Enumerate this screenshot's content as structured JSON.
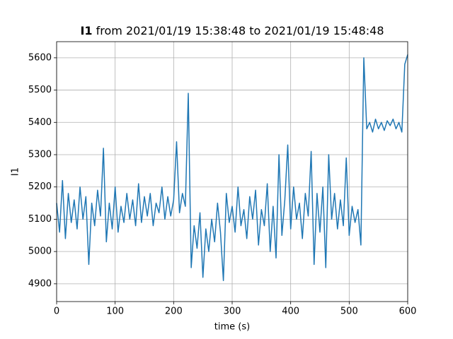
{
  "chart_data": {
    "type": "line",
    "title": {
      "bold": "I1",
      "text": "from 2021/01/19 15:38:48 to 2021/01/19 15:48:48"
    },
    "xlabel": "time (s)",
    "ylabel": "I1",
    "x": [
      0,
      5,
      10,
      15,
      20,
      25,
      30,
      35,
      40,
      45,
      50,
      55,
      60,
      65,
      70,
      75,
      80,
      85,
      90,
      95,
      100,
      105,
      110,
      115,
      120,
      125,
      130,
      135,
      140,
      145,
      150,
      155,
      160,
      165,
      170,
      175,
      180,
      185,
      190,
      195,
      200,
      205,
      210,
      215,
      220,
      225,
      230,
      235,
      240,
      245,
      250,
      255,
      260,
      265,
      270,
      275,
      280,
      285,
      290,
      295,
      300,
      305,
      310,
      315,
      320,
      325,
      330,
      335,
      340,
      345,
      350,
      355,
      360,
      365,
      370,
      375,
      380,
      385,
      390,
      395,
      400,
      405,
      410,
      415,
      420,
      425,
      430,
      435,
      440,
      445,
      450,
      455,
      460,
      465,
      470,
      475,
      480,
      485,
      490,
      495,
      500,
      505,
      510,
      515,
      520,
      525,
      530,
      535,
      540,
      545,
      550,
      555,
      560,
      565,
      570,
      575,
      580,
      585,
      590,
      595,
      600
    ],
    "series": [
      {
        "name": "I1",
        "color": "#1f77b4",
        "values": [
          5150,
          5060,
          5220,
          5040,
          5180,
          5090,
          5160,
          5070,
          5200,
          5100,
          5170,
          4960,
          5150,
          5080,
          5190,
          5110,
          5320,
          5030,
          5150,
          5070,
          5200,
          5060,
          5140,
          5090,
          5180,
          5100,
          5160,
          5080,
          5210,
          5090,
          5170,
          5110,
          5180,
          5080,
          5150,
          5120,
          5200,
          5100,
          5170,
          5110,
          5160,
          5340,
          5120,
          5180,
          5140,
          5490,
          4950,
          5080,
          5010,
          5120,
          4920,
          5070,
          5000,
          5100,
          5030,
          5150,
          5060,
          4910,
          5180,
          5090,
          5140,
          5060,
          5200,
          5080,
          5130,
          5040,
          5170,
          5100,
          5190,
          5020,
          5130,
          5080,
          5210,
          5000,
          5140,
          4980,
          5300,
          5050,
          5160,
          5330,
          5070,
          5200,
          5100,
          5150,
          5040,
          5180,
          5110,
          5310,
          4960,
          5180,
          5060,
          5200,
          4950,
          5300,
          5100,
          5180,
          5070,
          5160,
          5080,
          5290,
          5050,
          5140,
          5090,
          5130,
          5020,
          5600,
          5380,
          5400,
          5370,
          5410,
          5380,
          5400,
          5375,
          5405,
          5390,
          5410,
          5380,
          5400,
          5370,
          5580,
          5610
        ]
      }
    ],
    "xlim": [
      0,
      600
    ],
    "xticks": [
      0,
      100,
      200,
      300,
      400,
      500,
      600
    ],
    "ylim": [
      4845,
      5650
    ],
    "yticks": [
      4900,
      5000,
      5100,
      5200,
      5300,
      5400,
      5500,
      5600
    ],
    "grid": true
  }
}
